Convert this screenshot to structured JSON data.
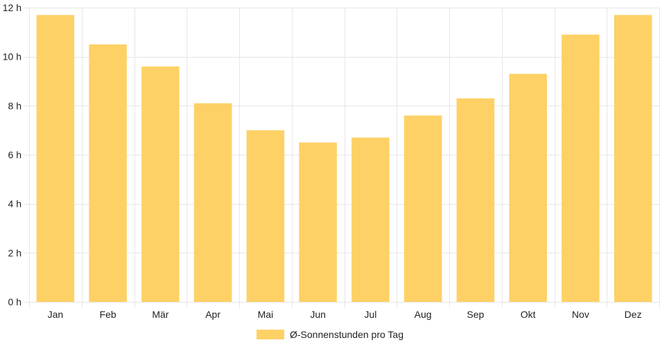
{
  "chart_data": {
    "type": "bar",
    "categories": [
      "Jan",
      "Feb",
      "Mär",
      "Apr",
      "Mai",
      "Jun",
      "Jul",
      "Aug",
      "Sep",
      "Okt",
      "Nov",
      "Dez"
    ],
    "series": [
      {
        "name": "Ø-Sonnenstunden pro Tag",
        "values": [
          11.7,
          10.5,
          9.6,
          8.1,
          7.0,
          6.5,
          6.7,
          7.6,
          8.3,
          9.3,
          10.9,
          11.7
        ]
      }
    ],
    "y_ticks": [
      "0 h",
      "2 h",
      "4 h",
      "6 h",
      "8 h",
      "10 h",
      "12 h"
    ],
    "ylim": [
      0,
      12
    ],
    "grid": true,
    "legend_position": "bottom",
    "bar_color": "#fed166",
    "grid_color": "#e6e6e6"
  }
}
